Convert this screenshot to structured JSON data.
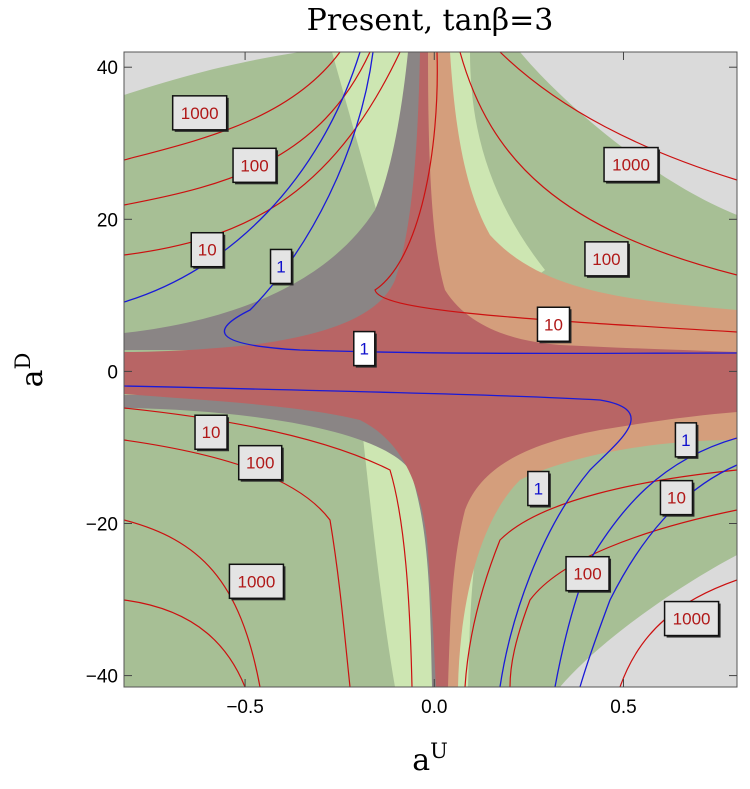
{
  "chart_data": {
    "type": "contour",
    "title": "Present, tanβ=3",
    "xlabel": "a",
    "xlabel_sup": "U",
    "ylabel": "a",
    "ylabel_sup": "D",
    "xlim": [
      -0.82,
      0.8
    ],
    "ylim": [
      -41.5,
      42
    ],
    "x_ticks": [
      {
        "value": -0.5,
        "label": "−0.5"
      },
      {
        "value": 0.0,
        "label": "0.0"
      },
      {
        "value": 0.5,
        "label": "0.5"
      }
    ],
    "y_ticks": [
      {
        "value": -40,
        "label": "−40"
      },
      {
        "value": -20,
        "label": "−20"
      },
      {
        "value": 0,
        "label": "0"
      },
      {
        "value": 20,
        "label": "20"
      },
      {
        "value": 40,
        "label": "40"
      }
    ],
    "colors": {
      "excluded_gray": "#dadada",
      "green": "#a7bf95",
      "light_green": "#cde6b2",
      "dark_gray": "#8a8585",
      "orange": "#d49e7c",
      "red": "#b86565",
      "contour_red": "#cc1010",
      "contour_blue": "#1a1ad8",
      "label_red_text": "#b01818",
      "label_blue_text": "#1010cc"
    },
    "contour_labels": [
      {
        "text": "1000",
        "x": -0.62,
        "y": 34,
        "color": "red"
      },
      {
        "text": "100",
        "x": -0.475,
        "y": 27.1,
        "color": "red"
      },
      {
        "text": "10",
        "x": -0.6,
        "y": 16,
        "color": "red"
      },
      {
        "text": "1",
        "x": -0.405,
        "y": 13.8,
        "color": "blue"
      },
      {
        "text": "1",
        "x": -0.185,
        "y": 3.0,
        "color": "blue"
      },
      {
        "text": "10",
        "x": 0.315,
        "y": 6.2,
        "color": "red"
      },
      {
        "text": "100",
        "x": 0.455,
        "y": 14.8,
        "color": "red"
      },
      {
        "text": "1000",
        "x": 0.52,
        "y": 27.2,
        "color": "red"
      },
      {
        "text": "10",
        "x": -0.59,
        "y": -8.0,
        "color": "red"
      },
      {
        "text": "100",
        "x": -0.46,
        "y": -12.0,
        "color": "red"
      },
      {
        "text": "1",
        "x": 0.275,
        "y": -15.4,
        "color": "blue"
      },
      {
        "text": "1",
        "x": 0.665,
        "y": -9.0,
        "color": "blue"
      },
      {
        "text": "10",
        "x": 0.64,
        "y": -16.6,
        "color": "red"
      },
      {
        "text": "100",
        "x": 0.405,
        "y": -26.6,
        "color": "red"
      },
      {
        "text": "1000",
        "x": -0.47,
        "y": -27.6,
        "color": "red"
      },
      {
        "text": "1000",
        "x": 0.68,
        "y": -32.5,
        "color": "red"
      }
    ]
  }
}
